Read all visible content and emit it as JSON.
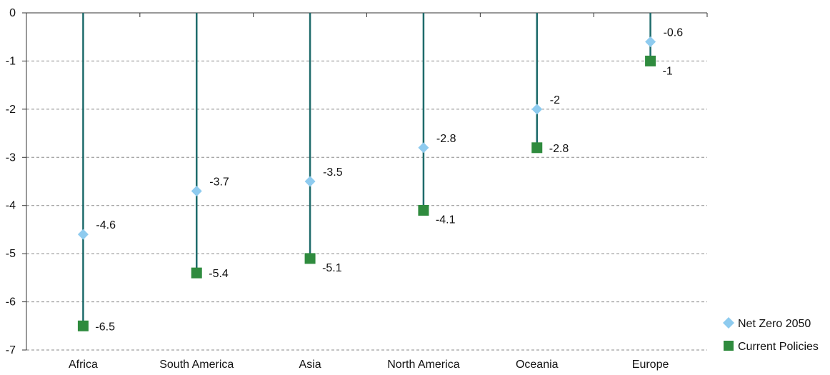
{
  "chart_data": {
    "type": "dot-range",
    "categories": [
      "Africa",
      "South America",
      "Asia",
      "North America",
      "Oceania",
      "Europe"
    ],
    "series": [
      {
        "name": "Net Zero 2050",
        "values": [
          -4.6,
          -3.7,
          -3.5,
          -2.8,
          -2.0,
          -0.6
        ],
        "labels": [
          "-4.6",
          "-3.7",
          "-3.5",
          "-2.8",
          "-2",
          "-0.6"
        ],
        "color": "#8ecbef",
        "marker": "diamond"
      },
      {
        "name": "Current Policies",
        "values": [
          -6.5,
          -5.4,
          -5.1,
          -4.1,
          -2.8,
          -1.0
        ],
        "labels": [
          "-6.5",
          "-5.4",
          "-5.1",
          "-4.1",
          "-2.8",
          "-1"
        ],
        "color": "#2f8b3e",
        "marker": "square"
      }
    ],
    "ylim": [
      -7,
      0
    ],
    "yticks": [
      "0",
      "-1",
      "-2",
      "-3",
      "-4",
      "-5",
      "-6",
      "-7"
    ],
    "stem_color": "#1e6b6b",
    "grid": "dashed horizontal",
    "legend_position": "bottom-right"
  }
}
